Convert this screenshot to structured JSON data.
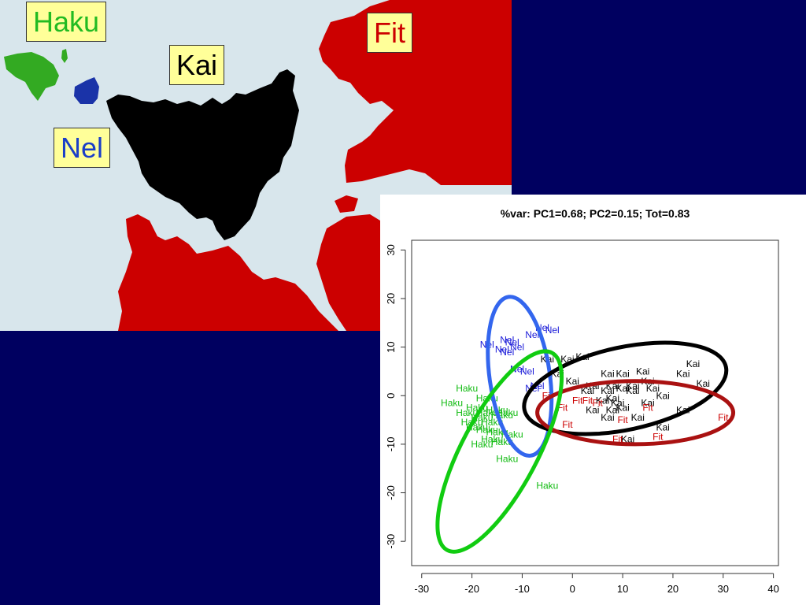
{
  "map": {
    "labels": [
      {
        "text": "Haku",
        "color": "#22bb22"
      },
      {
        "text": "Fit",
        "color": "#cc0000"
      },
      {
        "text": "Kai",
        "color": "#000000"
      },
      {
        "text": "Nel",
        "color": "#1a3ec8"
      }
    ],
    "colors": {
      "sea": "#d8e6ec",
      "haku": "#33aa22",
      "nel": "#1a33a8",
      "kai": "#000000",
      "fit": "#cc0000",
      "background": "#000060"
    }
  },
  "chart_data": {
    "type": "scatter",
    "title": "%var: PC1=0.68; PC2=0.15; Tot=0.83",
    "xlabel": "",
    "ylabel": "",
    "xlim": [
      -32,
      41
    ],
    "ylim": [
      -35,
      32
    ],
    "xticks": [
      -30,
      -20,
      -10,
      0,
      10,
      20,
      30,
      40
    ],
    "yticks": [
      -30,
      -20,
      -10,
      0,
      10,
      20,
      30
    ],
    "grid": false,
    "series": [
      {
        "name": "Nel",
        "color": "#1a1ad8",
        "points": [
          [
            -6,
            14
          ],
          [
            -4,
            13.5
          ],
          [
            -8,
            12.5
          ],
          [
            -13,
            11.5
          ],
          [
            -12,
            11
          ],
          [
            -17,
            10.5
          ],
          [
            -11,
            10
          ],
          [
            -14,
            9.5
          ],
          [
            -13,
            9
          ],
          [
            -11,
            5.5
          ],
          [
            -9,
            5
          ],
          [
            -7,
            2
          ],
          [
            -8,
            1.5
          ]
        ]
      },
      {
        "name": "Kai",
        "color": "#000000",
        "points": [
          [
            -5,
            7.5
          ],
          [
            2,
            8
          ],
          [
            -1,
            7.5
          ],
          [
            -3,
            4.5
          ],
          [
            0,
            3
          ],
          [
            7,
            4.5
          ],
          [
            10,
            4.5
          ],
          [
            14,
            5
          ],
          [
            24,
            6.5
          ],
          [
            22,
            4.5
          ],
          [
            26,
            2.5
          ],
          [
            15,
            3
          ],
          [
            12,
            2
          ],
          [
            16,
            1.5
          ],
          [
            18,
            0
          ],
          [
            4,
            2
          ],
          [
            8,
            2
          ],
          [
            3,
            1
          ],
          [
            7,
            1
          ],
          [
            12,
            1
          ],
          [
            10,
            1.5
          ],
          [
            6,
            -1
          ],
          [
            8,
            -0.5
          ],
          [
            9,
            -1.5
          ],
          [
            15,
            -1.5
          ],
          [
            4,
            -3
          ],
          [
            8,
            -3
          ],
          [
            10,
            -2.5
          ],
          [
            22,
            -3
          ],
          [
            7,
            -4.5
          ],
          [
            13,
            -4.5
          ],
          [
            18,
            -6.5
          ],
          [
            11,
            -9
          ]
        ]
      },
      {
        "name": "Fit",
        "color": "#cc0000",
        "points": [
          [
            -5,
            0
          ],
          [
            1,
            -1
          ],
          [
            3,
            -1
          ],
          [
            5,
            -1.5
          ],
          [
            -2,
            -2.5
          ],
          [
            15,
            -2.5
          ],
          [
            10,
            -5
          ],
          [
            -1,
            -6
          ],
          [
            17,
            -8.5
          ],
          [
            9,
            -9
          ],
          [
            30,
            -4.5
          ]
        ]
      },
      {
        "name": "Haku",
        "color": "#11bb11",
        "points": [
          [
            -21,
            1.5
          ],
          [
            -17,
            -0.5
          ],
          [
            -24,
            -1.5
          ],
          [
            -19,
            -2.5
          ],
          [
            -15,
            -3
          ],
          [
            -13,
            -3.5
          ],
          [
            -17,
            -3.5
          ],
          [
            -21,
            -3.5
          ],
          [
            -18,
            -4.5
          ],
          [
            -14,
            -4
          ],
          [
            -20,
            -5.5
          ],
          [
            -16,
            -5.5
          ],
          [
            -19,
            -6.5
          ],
          [
            -17,
            -7
          ],
          [
            -15,
            -7.5
          ],
          [
            -12,
            -8
          ],
          [
            -16,
            -9
          ],
          [
            -14,
            -9.5
          ],
          [
            -18,
            -10
          ],
          [
            -13,
            -13
          ],
          [
            -5,
            -18.5
          ]
        ]
      }
    ],
    "ellipses": [
      {
        "name": "Nel",
        "color": "#3366ee",
        "cx": -10.5,
        "cy": 4,
        "rx": 6,
        "ry": 16.5,
        "angle_deg": -8
      },
      {
        "name": "Kai",
        "color": "#000000",
        "cx": 10.5,
        "cy": 1.5,
        "rx": 20.5,
        "ry": 8.5,
        "angle_deg": -12
      },
      {
        "name": "Fit",
        "color": "#aa1111",
        "cx": 12.5,
        "cy": -3.5,
        "rx": 19.5,
        "ry": 6.5,
        "angle_deg": 0
      },
      {
        "name": "Haku",
        "color": "#11cc11",
        "cx": -14.5,
        "cy": -11.5,
        "rx": 7.5,
        "ry": 23,
        "angle_deg": 28
      }
    ]
  }
}
